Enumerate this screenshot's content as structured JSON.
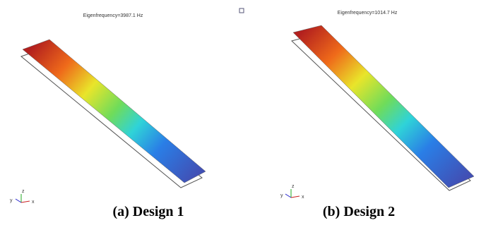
{
  "panels": [
    {
      "title": "Eigenfrequency=3987.1 Hz",
      "caption": "(a) Design 1",
      "axes": [
        "z",
        "y",
        "x"
      ]
    },
    {
      "title": "Eigenfrequency=1014.7 Hz",
      "caption": "(b) Design 2",
      "axes": [
        "z",
        "y",
        "x"
      ]
    }
  ]
}
